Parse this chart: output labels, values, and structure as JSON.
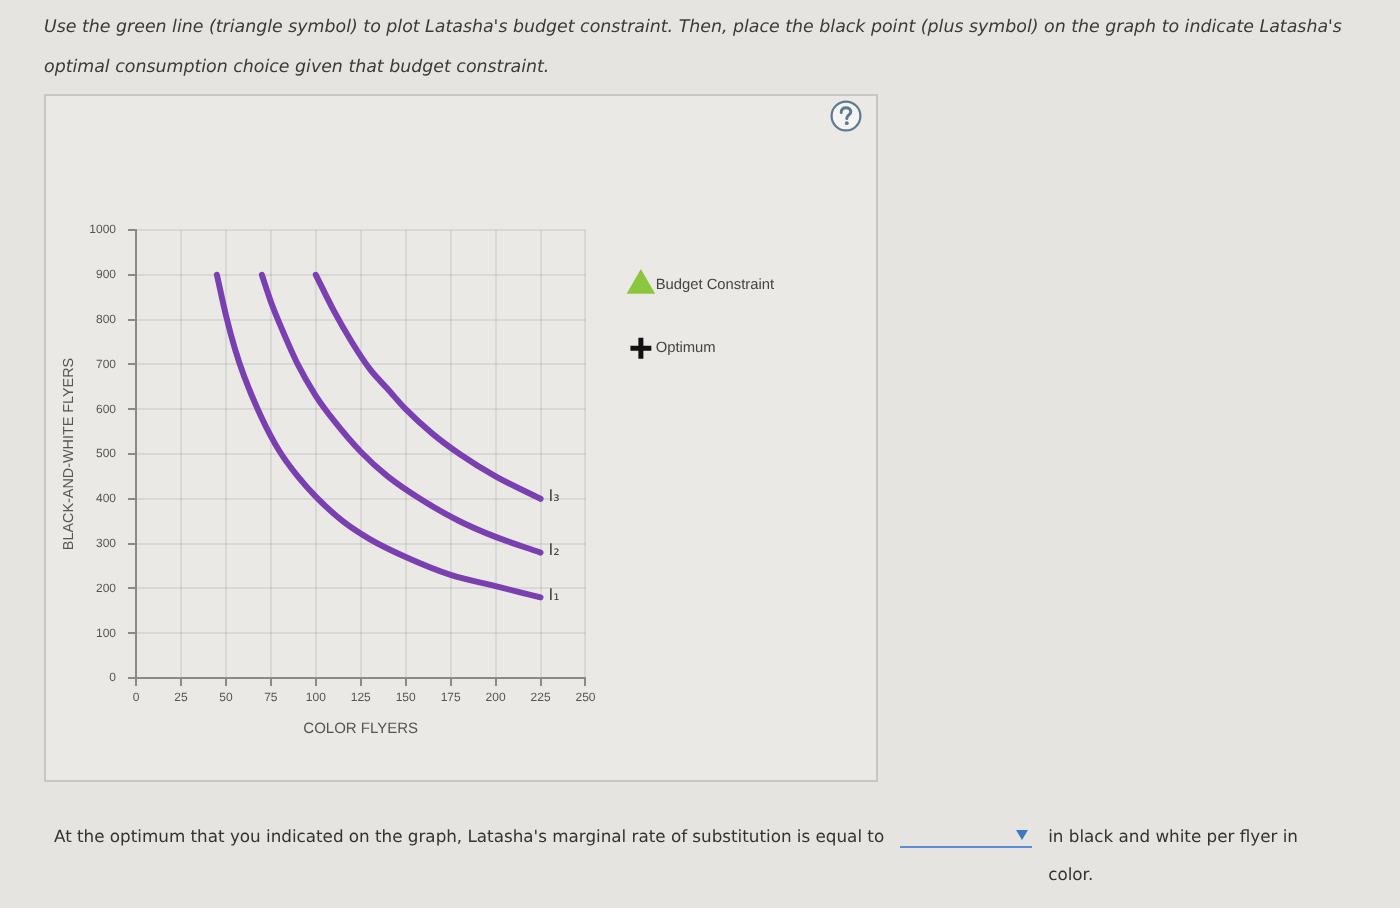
{
  "chart_data": {
    "type": "line",
    "title": "Use the green line (triangle symbol) to plot Latasha's budget constraint. Then, place the black point (plus symbol) on the graph to indicate Latasha's optimal consumption choice given that budget constraint.",
    "xlabel": "COLOR FLYERS",
    "ylabel": "BLACK-AND-WHITE FLYERS",
    "annotations": [
      "At the optimum that you indicated on the graph, Latasha's marginal rate of substitution is equal to",
      "in black and white per flyer in color."
    ],
    "xlim": [
      0,
      250
    ],
    "xticks": [
      0,
      25,
      50,
      75,
      100,
      125,
      150,
      175,
      200,
      225,
      250
    ],
    "ylim": [
      0,
      1000
    ],
    "yticks": [
      0,
      100,
      200,
      300,
      400,
      500,
      600,
      700,
      800,
      900,
      1000
    ],
    "grid": true,
    "legend": "right",
    "marker": "none",
    "series": [
      {
        "name": "I₁",
        "color": "#7a3fb0",
        "x": [
          45,
          50,
          55,
          60,
          70,
          80,
          90,
          100,
          115,
          130,
          150,
          175,
          200,
          225
        ],
        "values": [
          900,
          810,
          735,
          675,
          580,
          505,
          450,
          405,
          350,
          310,
          270,
          230,
          205,
          180
        ]
      },
      {
        "name": "I₂",
        "color": "#7a3fb0",
        "x": [
          70,
          75,
          80,
          90,
          100,
          110,
          125,
          140,
          160,
          180,
          200,
          225
        ],
        "values": [
          900,
          840,
          790,
          700,
          630,
          575,
          505,
          450,
          395,
          350,
          315,
          280
        ]
      },
      {
        "name": "I₃",
        "color": "#7a3fb0",
        "x": [
          100,
          110,
          120,
          130,
          140,
          150,
          165,
          180,
          200,
          225
        ],
        "values": [
          900,
          820,
          750,
          690,
          645,
          600,
          545,
          500,
          450,
          400
        ]
      },
      {
        "name": "Budget Constraint",
        "type": "line",
        "marker": "triangle",
        "color": "#8cc63f"
      },
      {
        "name": "Optimum",
        "type": "scatter",
        "marker": "cross",
        "color": "#111111"
      }
    ]
  }
}
